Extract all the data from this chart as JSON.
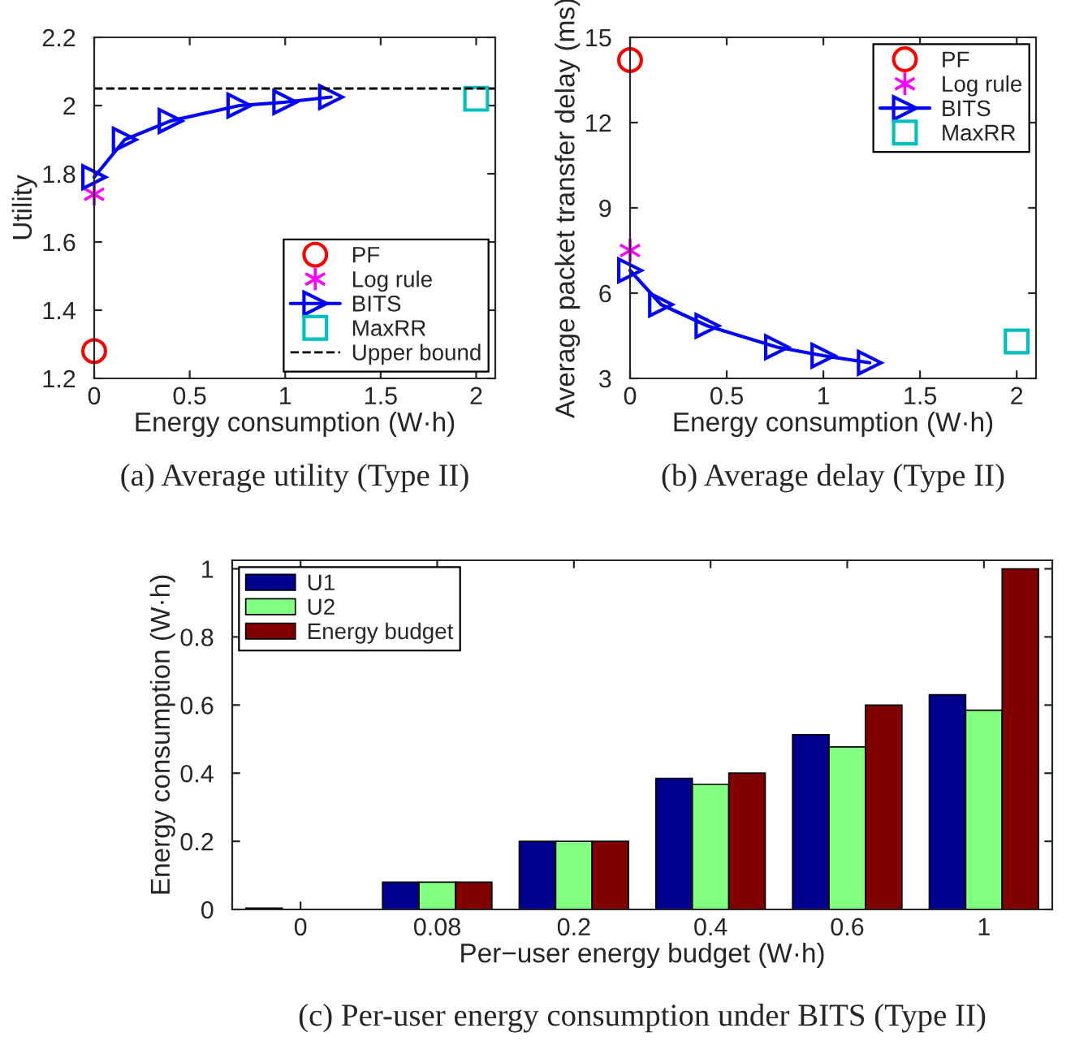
{
  "chart_data": [
    {
      "type": "scatter",
      "title": "(a) Average utility (Type II)",
      "xlabel": "Energy consumption (W·h)",
      "ylabel": "Utility",
      "xlim": [
        0,
        2.1
      ],
      "xticks": [
        0,
        0.5,
        1,
        1.5,
        2
      ],
      "ylim": [
        1.2,
        2.2
      ],
      "yticks": [
        1.2,
        1.4,
        1.6,
        1.8,
        2,
        2.2
      ],
      "grid": false,
      "legend": "bottom right",
      "series": [
        {
          "name": "PF",
          "type": "scatter",
          "marker": "circle",
          "color": "#ff0000",
          "x": [
            0
          ],
          "values": [
            1.28
          ]
        },
        {
          "name": "Log rule",
          "type": "scatter",
          "marker": "cross",
          "color": "#ff00ff",
          "x": [
            0
          ],
          "values": [
            1.74
          ]
        },
        {
          "name": "BITS",
          "type": "line",
          "marker": "triangle",
          "line_style": "solid",
          "color": "#0000ff",
          "x": [
            0,
            0.16,
            0.4,
            0.76,
            1.0,
            1.24
          ],
          "values": [
            1.79,
            1.9,
            1.955,
            2.0,
            2.01,
            2.025
          ]
        },
        {
          "name": "MaxRR",
          "type": "scatter",
          "marker": "square",
          "color": "#00bfbf",
          "x": [
            2
          ],
          "values": [
            2.02
          ]
        }
      ],
      "ref_lines": [
        {
          "axis": "y",
          "value": 2.05,
          "label": "Upper bound",
          "color": "#000000",
          "line_style": "dashed"
        }
      ]
    },
    {
      "type": "scatter",
      "title": "(b) Average delay (Type II)",
      "xlabel": "Energy consumption (W·h)",
      "ylabel": "Average packet transfer delay (ms)",
      "xlim": [
        0,
        2.1
      ],
      "xticks": [
        0,
        0.5,
        1,
        1.5,
        2
      ],
      "ylim": [
        3,
        15
      ],
      "yticks": [
        3,
        6,
        9,
        12,
        15
      ],
      "grid": false,
      "legend": "top right",
      "series": [
        {
          "name": "PF",
          "type": "scatter",
          "marker": "circle",
          "color": "#ff0000",
          "x": [
            0
          ],
          "values": [
            14.2
          ]
        },
        {
          "name": "Log rule",
          "type": "scatter",
          "marker": "cross",
          "color": "#ff00ff",
          "x": [
            0
          ],
          "values": [
            7.5
          ]
        },
        {
          "name": "BITS",
          "type": "line",
          "marker": "triangle",
          "line_style": "solid",
          "color": "#0000ff",
          "x": [
            0,
            0.16,
            0.4,
            0.76,
            1.0,
            1.24
          ],
          "values": [
            6.8,
            5.6,
            4.85,
            4.1,
            3.8,
            3.55
          ]
        },
        {
          "name": "MaxRR",
          "type": "scatter",
          "marker": "square",
          "color": "#00bfbf",
          "x": [
            2
          ],
          "values": [
            4.3
          ]
        }
      ]
    },
    {
      "type": "bar",
      "title": "(c) Per-user energy consumption under BITS (Type II)",
      "xlabel": "Per−user energy budget (W·h)",
      "ylabel": "Energy consumption (W·h)",
      "categories": [
        "0",
        "0.08",
        "0.2",
        "0.4",
        "0.6",
        "1"
      ],
      "ylim": [
        0,
        1.025
      ],
      "yticks": [
        0,
        0.2,
        0.4,
        0.6,
        0.8,
        1
      ],
      "grid": false,
      "legend": "top left",
      "series": [
        {
          "name": "U1",
          "color": "#00008f",
          "values": [
            0.004,
            0.08,
            0.2,
            0.385,
            0.513,
            0.63
          ]
        },
        {
          "name": "U2",
          "color": "#80ff80",
          "values": [
            null,
            0.08,
            0.2,
            0.367,
            0.477,
            0.585
          ]
        },
        {
          "name": "Energy budget",
          "color": "#800000",
          "values": [
            null,
            0.08,
            0.2,
            0.4,
            0.6,
            1.0
          ]
        }
      ]
    }
  ]
}
